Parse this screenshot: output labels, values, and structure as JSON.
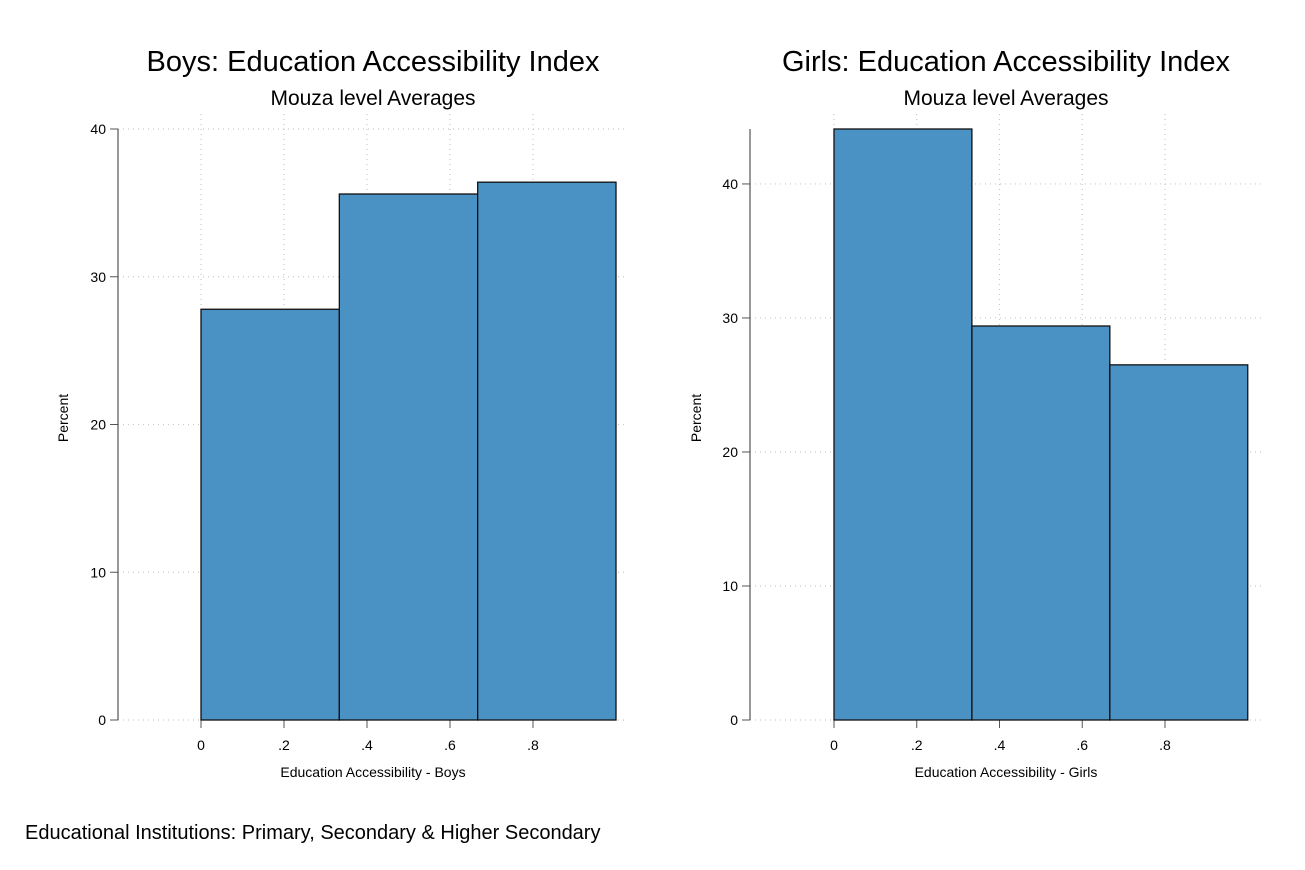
{
  "chart_data": [
    {
      "type": "bar",
      "title": "Boys: Education Accessibility Index",
      "subtitle": "Mouza level Averages",
      "xlabel": "Education Accessibility - Boys",
      "ylabel": "Percent",
      "x_ticks": [
        "0",
        ".2",
        ".4",
        ".6",
        ".8"
      ],
      "x_tick_values": [
        0,
        0.2,
        0.4,
        0.6,
        0.8
      ],
      "y_ticks": [
        "0",
        "10",
        "20",
        "30",
        "40"
      ],
      "y_tick_values": [
        0,
        10,
        20,
        30,
        40
      ],
      "xlim": [
        -0.2,
        1.03
      ],
      "ylim": [
        0,
        40
      ],
      "bins": [
        [
          0,
          0.3333
        ],
        [
          0.3333,
          0.6667
        ],
        [
          0.6667,
          1.0
        ]
      ],
      "values": [
        27.8,
        35.6,
        36.4
      ],
      "color": "#4a92c3",
      "grid": true
    },
    {
      "type": "bar",
      "title": "Girls: Education Accessibility Index",
      "subtitle": "Mouza level Averages",
      "xlabel": "Education Accessibility - Girls",
      "ylabel": "Percent",
      "x_ticks": [
        "0",
        ".2",
        ".4",
        ".6",
        ".8"
      ],
      "x_tick_values": [
        0,
        0.2,
        0.4,
        0.6,
        0.8
      ],
      "y_ticks": [
        "0",
        "10",
        "20",
        "30",
        "40"
      ],
      "y_tick_values": [
        0,
        10,
        20,
        30,
        40
      ],
      "xlim": [
        -0.2,
        1.03
      ],
      "ylim": [
        0,
        44.1
      ],
      "bins": [
        [
          0,
          0.3333
        ],
        [
          0.3333,
          0.6667
        ],
        [
          0.6667,
          1.0
        ]
      ],
      "values": [
        44.1,
        29.4,
        26.5
      ],
      "color": "#4a92c3",
      "grid": true
    }
  ],
  "note": "Educational Institutions: Primary, Secondary & Higher Secondary"
}
